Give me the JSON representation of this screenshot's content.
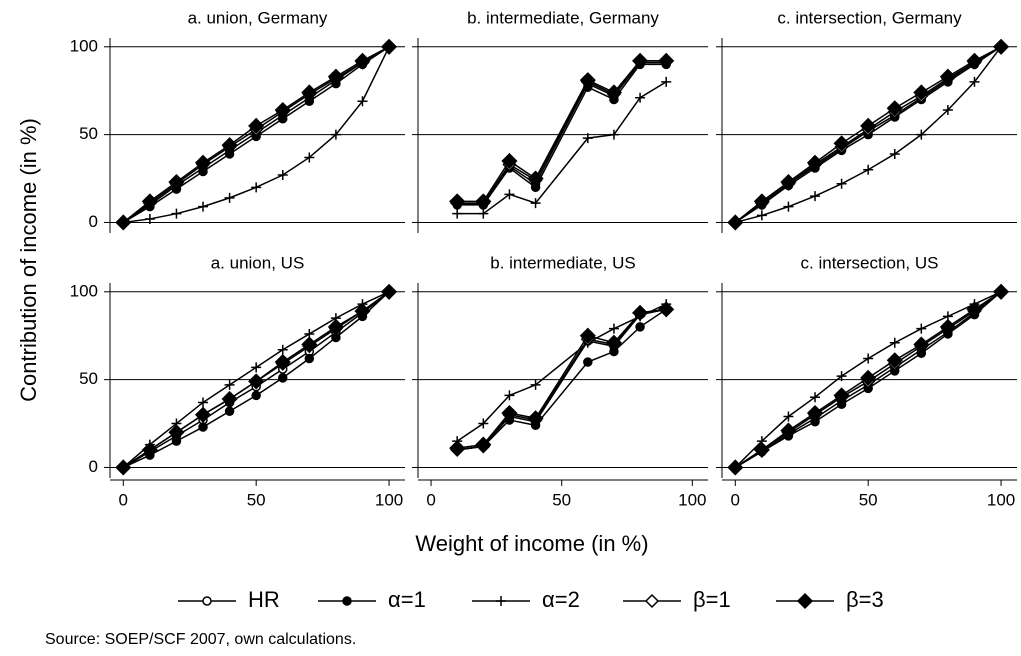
{
  "figure": {
    "ylabel": "Contribution of income (in %)",
    "xlabel": "Weight of income (in %)",
    "source": "Source: SOEP/SCF 2007, own calculations."
  },
  "legend": {
    "entries": [
      {
        "name": "HR",
        "marker": "circle-open",
        "color": "#000000"
      },
      {
        "name": "α=1",
        "marker": "circle-filled",
        "color": "#000000"
      },
      {
        "name": "α=2",
        "marker": "plus",
        "color": "#000000"
      },
      {
        "name": "β=1",
        "marker": "diamond-open",
        "color": "#000000"
      },
      {
        "name": "β=3",
        "marker": "diamond-filled",
        "color": "#000000"
      }
    ]
  },
  "chart_data": [
    {
      "type": "line",
      "title": "a. union, Germany",
      "x": [
        0,
        10,
        20,
        30,
        40,
        50,
        60,
        70,
        80,
        90,
        100
      ],
      "xlim": [
        -5,
        106
      ],
      "ylim": [
        -6,
        105
      ],
      "yticks": [
        0,
        50,
        100
      ],
      "grid": true,
      "series": [
        {
          "values": [
            0,
            10,
            21,
            31,
            41,
            51,
            61,
            71,
            81,
            91,
            100
          ]
        },
        {
          "values": [
            0,
            9,
            19,
            29,
            39,
            49,
            59,
            69,
            79,
            90,
            100
          ]
        },
        {
          "values": [
            0,
            2,
            5,
            9,
            14,
            20,
            27,
            37,
            50,
            69,
            100
          ]
        },
        {
          "values": [
            0,
            11,
            22,
            33,
            43,
            53,
            63,
            73,
            82,
            91,
            100
          ]
        },
        {
          "values": [
            0,
            12,
            23,
            34,
            44,
            55,
            64,
            74,
            83,
            92,
            100
          ]
        }
      ]
    },
    {
      "type": "line",
      "title": "b. intermediate, Germany",
      "x": [
        10,
        20,
        30,
        40,
        60,
        70,
        80,
        90
      ],
      "xlim": [
        -5,
        106
      ],
      "ylim": [
        -6,
        105
      ],
      "yticks": [
        0,
        50,
        100
      ],
      "grid": true,
      "series": [
        {
          "values": [
            11,
            10,
            32,
            22,
            79,
            72,
            91,
            91
          ]
        },
        {
          "values": [
            10,
            10,
            31,
            20,
            77,
            70,
            90,
            90
          ]
        },
        {
          "values": [
            5,
            5,
            16,
            11,
            48,
            50,
            71,
            80
          ]
        },
        {
          "values": [
            11,
            11,
            33,
            24,
            80,
            73,
            92,
            92
          ]
        },
        {
          "values": [
            12,
            12,
            35,
            25,
            81,
            74,
            92,
            92
          ]
        }
      ]
    },
    {
      "type": "line",
      "title": "c. intersection, Germany",
      "x": [
        0,
        10,
        20,
        30,
        40,
        50,
        60,
        70,
        80,
        90,
        100
      ],
      "xlim": [
        -5,
        106
      ],
      "ylim": [
        -6,
        105
      ],
      "yticks": [
        0,
        50,
        100
      ],
      "grid": true,
      "series": [
        {
          "values": [
            0,
            11,
            22,
            32,
            42,
            52,
            61,
            71,
            81,
            91,
            100
          ]
        },
        {
          "values": [
            0,
            10,
            21,
            31,
            41,
            50,
            60,
            70,
            80,
            90,
            100
          ]
        },
        {
          "values": [
            0,
            4,
            9,
            15,
            22,
            30,
            39,
            50,
            64,
            80,
            100
          ]
        },
        {
          "values": [
            0,
            11,
            22,
            33,
            43,
            53,
            63,
            72,
            82,
            91,
            100
          ]
        },
        {
          "values": [
            0,
            12,
            23,
            34,
            45,
            55,
            65,
            74,
            83,
            92,
            100
          ]
        }
      ]
    },
    {
      "type": "line",
      "title": "a. union, US",
      "x": [
        0,
        10,
        20,
        30,
        40,
        50,
        60,
        70,
        80,
        90,
        100
      ],
      "xlim": [
        -5,
        106
      ],
      "ylim": [
        -6,
        105
      ],
      "xticks": [
        0,
        50,
        100
      ],
      "yticks": [
        0,
        50,
        100
      ],
      "grid": true,
      "series": [
        {
          "values": [
            0,
            9,
            18,
            27,
            37,
            46,
            56,
            66,
            77,
            88,
            100
          ]
        },
        {
          "values": [
            0,
            7,
            15,
            23,
            32,
            41,
            51,
            62,
            74,
            86,
            100
          ]
        },
        {
          "values": [
            0,
            13,
            25,
            37,
            47,
            57,
            67,
            76,
            85,
            93,
            100
          ]
        },
        {
          "values": [
            0,
            10,
            20,
            30,
            39,
            49,
            59,
            69,
            79,
            89,
            100
          ]
        },
        {
          "values": [
            0,
            10,
            20,
            30,
            39,
            49,
            60,
            70,
            80,
            89,
            100
          ]
        }
      ]
    },
    {
      "type": "line",
      "title": "b. intermediate, US",
      "x": [
        10,
        20,
        30,
        40,
        60,
        70,
        80,
        90
      ],
      "xlim": [
        -5,
        106
      ],
      "ylim": [
        -6,
        105
      ],
      "xticks": [
        0,
        50,
        100
      ],
      "yticks": [
        0,
        50,
        100
      ],
      "grid": true,
      "series": [
        {
          "values": [
            10,
            12,
            29,
            26,
            72,
            69,
            87,
            90
          ]
        },
        {
          "values": [
            10,
            12,
            27,
            24,
            60,
            66,
            80,
            90
          ]
        },
        {
          "values": [
            15,
            25,
            41,
            47,
            71,
            79,
            86,
            93
          ]
        },
        {
          "values": [
            10,
            12,
            30,
            27,
            73,
            70,
            88,
            90
          ]
        },
        {
          "values": [
            11,
            13,
            31,
            28,
            75,
            71,
            88,
            90
          ]
        }
      ]
    },
    {
      "type": "line",
      "title": "c. intersection, US",
      "x": [
        0,
        10,
        20,
        30,
        40,
        50,
        60,
        70,
        80,
        90,
        100
      ],
      "xlim": [
        -5,
        106
      ],
      "ylim": [
        -6,
        105
      ],
      "xticks": [
        0,
        50,
        100
      ],
      "yticks": [
        0,
        50,
        100
      ],
      "grid": true,
      "series": [
        {
          "values": [
            0,
            9,
            19,
            28,
            38,
            47,
            57,
            67,
            77,
            88,
            100
          ]
        },
        {
          "values": [
            0,
            9,
            18,
            26,
            36,
            45,
            55,
            65,
            76,
            87,
            100
          ]
        },
        {
          "values": [
            0,
            15,
            29,
            40,
            52,
            62,
            71,
            79,
            86,
            93,
            100
          ]
        },
        {
          "values": [
            0,
            10,
            20,
            30,
            40,
            49,
            59,
            69,
            79,
            89,
            100
          ]
        },
        {
          "values": [
            0,
            10,
            21,
            31,
            41,
            51,
            61,
            70,
            80,
            90,
            100
          ]
        }
      ]
    }
  ]
}
